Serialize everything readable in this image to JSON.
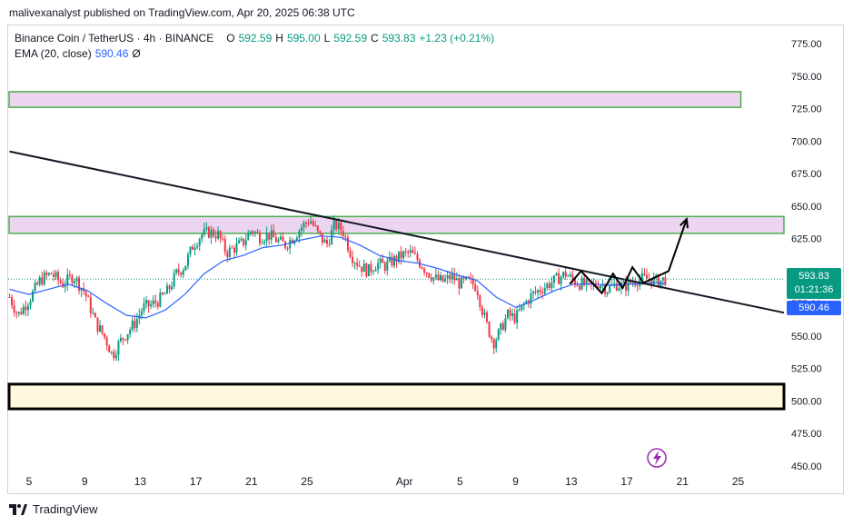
{
  "caption": "malivexanalyst published on TradingView.com, Apr 20, 2025 06:38 UTC",
  "legend": {
    "symbol": "Binance Coin / TetherUS · 4h · BINANCE",
    "o_label": "O",
    "o_value": "592.59",
    "h_label": "H",
    "h_value": "595.00",
    "l_label": "L",
    "l_value": "592.59",
    "c_label": "C",
    "c_value": "593.83",
    "change": "+1.23 (+0.21%)",
    "ema_label": "EMA (20, close)",
    "ema_value": "590.46",
    "ema_extra": "Ø"
  },
  "price_tags": {
    "last_price": "593.83",
    "countdown": "01:21:36",
    "ema_price": "590.46"
  },
  "footer": {
    "brand": "TradingView"
  },
  "colors": {
    "up": "#089981",
    "down": "#f23645",
    "ema": "#2962ff",
    "zone_green_border": "#4caf50",
    "zone_purple_fill": "#ecd6ef",
    "zone_yellow_fill": "#fff8dc",
    "trendline": "#131722"
  },
  "chart_data": {
    "type": "candlestick",
    "title": "Binance Coin / TetherUS · 4h · BINANCE",
    "ylim": [
      445,
      785
    ],
    "y_ticks": [
      "775.00",
      "750.00",
      "725.00",
      "700.00",
      "675.00",
      "650.00",
      "625.00",
      "600.00",
      "575.00",
      "550.00",
      "525.00",
      "500.00",
      "475.00",
      "450.00"
    ],
    "x_ticks": [
      "5",
      "9",
      "13",
      "17",
      "21",
      "25",
      "Apr",
      "5",
      "9",
      "13",
      "17",
      "21",
      "25"
    ],
    "x_range_days": [
      -27.5,
      28.3
    ],
    "x_tick_days": [
      -26,
      -22,
      -18,
      -14,
      -10,
      -6,
      1,
      5,
      9,
      13,
      17,
      21,
      25
    ],
    "series_price_path": [
      [
        -27.4,
        580
      ],
      [
        -26.8,
        566
      ],
      [
        -26.0,
        578
      ],
      [
        -25.2,
        593
      ],
      [
        -24.4,
        598
      ],
      [
        -23.6,
        590
      ],
      [
        -22.8,
        596
      ],
      [
        -22.0,
        584
      ],
      [
        -21.2,
        560
      ],
      [
        -20.5,
        548
      ],
      [
        -20.0,
        535
      ],
      [
        -19.5,
        545
      ],
      [
        -19.0,
        552
      ],
      [
        -18.4,
        560
      ],
      [
        -17.8,
        572
      ],
      [
        -17.2,
        574
      ],
      [
        -16.6,
        578
      ],
      [
        -16.0,
        585
      ],
      [
        -15.4,
        598
      ],
      [
        -14.8,
        604
      ],
      [
        -14.2,
        620
      ],
      [
        -13.6,
        628
      ],
      [
        -13.0,
        630
      ],
      [
        -12.4,
        628
      ],
      [
        -11.8,
        614
      ],
      [
        -11.2,
        618
      ],
      [
        -10.6,
        622
      ],
      [
        -10.0,
        632
      ],
      [
        -9.4,
        626
      ],
      [
        -8.8,
        628
      ],
      [
        -8.2,
        624
      ],
      [
        -7.6,
        620
      ],
      [
        -7.0,
        626
      ],
      [
        -6.4,
        634
      ],
      [
        -5.8,
        640
      ],
      [
        -5.2,
        628
      ],
      [
        -4.6,
        620
      ],
      [
        -4.0,
        636
      ],
      [
        -3.4,
        630
      ],
      [
        -2.8,
        612
      ],
      [
        -2.2,
        604
      ],
      [
        -1.6,
        600
      ],
      [
        -1.0,
        606
      ],
      [
        -0.4,
        604
      ],
      [
        0.2,
        608
      ],
      [
        0.8,
        612
      ],
      [
        1.4,
        614
      ],
      [
        2.0,
        608
      ],
      [
        2.6,
        600
      ],
      [
        3.2,
        594
      ],
      [
        3.8,
        592
      ],
      [
        4.4,
        596
      ],
      [
        5.0,
        590
      ],
      [
        5.6,
        592
      ],
      [
        6.2,
        588
      ],
      [
        6.6,
        570
      ],
      [
        7.0,
        556
      ],
      [
        7.4,
        545
      ],
      [
        7.8,
        552
      ],
      [
        8.4,
        566
      ],
      [
        9.0,
        564
      ],
      [
        9.6,
        574
      ],
      [
        10.2,
        582
      ],
      [
        10.8,
        586
      ],
      [
        11.4,
        590
      ],
      [
        12.0,
        594
      ],
      [
        12.6,
        598
      ],
      [
        13.2,
        592
      ],
      [
        13.8,
        590
      ],
      [
        14.4,
        588
      ],
      [
        15.0,
        591
      ],
      [
        15.6,
        586
      ],
      [
        16.2,
        590
      ],
      [
        16.8,
        588
      ],
      [
        17.4,
        592
      ],
      [
        18.0,
        594
      ],
      [
        18.6,
        594
      ],
      [
        19.2,
        592
      ],
      [
        19.8,
        593.83
      ]
    ],
    "series_ema_path": [
      [
        -27.4,
        586
      ],
      [
        -26.0,
        582
      ],
      [
        -24.6,
        586
      ],
      [
        -23.2,
        590
      ],
      [
        -21.8,
        585
      ],
      [
        -20.4,
        575
      ],
      [
        -19.0,
        566
      ],
      [
        -17.6,
        564
      ],
      [
        -16.2,
        570
      ],
      [
        -14.8,
        582
      ],
      [
        -13.4,
        598
      ],
      [
        -12.0,
        608
      ],
      [
        -10.6,
        612
      ],
      [
        -9.2,
        618
      ],
      [
        -7.8,
        620
      ],
      [
        -6.4,
        624
      ],
      [
        -5.0,
        627
      ],
      [
        -3.6,
        626
      ],
      [
        -2.2,
        620
      ],
      [
        -0.8,
        612
      ],
      [
        0.6,
        608
      ],
      [
        2.0,
        606
      ],
      [
        3.4,
        602
      ],
      [
        4.8,
        597
      ],
      [
        6.2,
        593
      ],
      [
        7.6,
        580
      ],
      [
        9.0,
        572
      ],
      [
        10.4,
        578
      ],
      [
        11.8,
        585
      ],
      [
        13.2,
        590
      ],
      [
        14.6,
        590
      ],
      [
        16.0,
        589
      ],
      [
        17.4,
        590
      ],
      [
        18.8,
        591
      ],
      [
        19.8,
        590.46
      ]
    ],
    "zones": [
      {
        "from": 726,
        "to": 738,
        "x_end_day": 25.2
      },
      {
        "from": 629,
        "to": 642,
        "x_end_day": 28.3
      },
      {
        "from": 494,
        "to": 513,
        "x_end_day": 28.3
      }
    ],
    "trendline": [
      [
        -27.4,
        692
      ],
      [
        28.3,
        568
      ]
    ],
    "projection_path": [
      [
        12.9,
        590
      ],
      [
        13.7,
        600
      ],
      [
        15.2,
        583
      ],
      [
        16.0,
        598
      ],
      [
        16.7,
        587
      ],
      [
        17.4,
        603
      ],
      [
        18.2,
        591
      ],
      [
        20.0,
        600
      ],
      [
        21.3,
        640
      ]
    ],
    "last_price": 593.83,
    "ema_last": 590.46
  }
}
